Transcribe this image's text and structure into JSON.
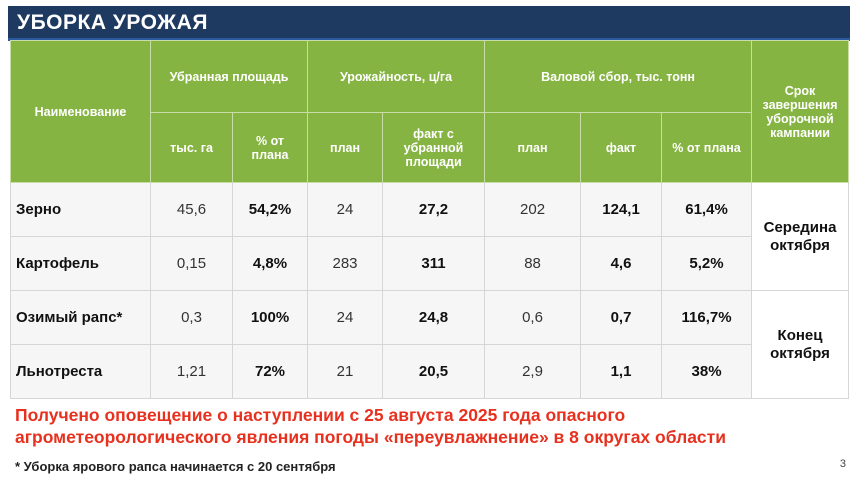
{
  "title": "УБОРКА УРОЖАЯ",
  "header": {
    "name": "Наименование",
    "area_group": "Убранная площадь",
    "yield_group": "Урожайность, ц/га",
    "gross_group": "Валовой сбор, тыс. тонн",
    "term": "Срок завершения уборочной кампании",
    "area_ha": "тыс. га",
    "area_pct": "% от плана",
    "yield_plan": "план",
    "yield_fact": "факт с убранной площади",
    "gross_plan": "план",
    "gross_fact": "факт",
    "gross_pct": "% от плана"
  },
  "rows": [
    {
      "name": "Зерно",
      "area_ha": "45,6",
      "area_pct": "54,2%",
      "yield_plan": "24",
      "yield_fact": "27,2",
      "gross_plan": "202",
      "gross_fact": "124,1",
      "gross_pct": "61,4%"
    },
    {
      "name": "Картофель",
      "area_ha": "0,15",
      "area_pct": "4,8%",
      "yield_plan": "283",
      "yield_fact": "311",
      "gross_plan": "88",
      "gross_fact": "4,6",
      "gross_pct": "5,2%"
    },
    {
      "name": "Озимый рапс*",
      "area_ha": "0,3",
      "area_pct": "100%",
      "yield_plan": "24",
      "yield_fact": "24,8",
      "gross_plan": "0,6",
      "gross_fact": "0,7",
      "gross_pct": "116,7%"
    },
    {
      "name": "Льнотреста",
      "area_ha": "1,21",
      "area_pct": "72%",
      "yield_plan": "21",
      "yield_fact": "20,5",
      "gross_plan": "2,9",
      "gross_fact": "1,1",
      "gross_pct": "38%"
    }
  ],
  "terms": [
    "Середина октября",
    "Конец октября"
  ],
  "alert": "Получено оповещение о наступлении с 25 августа 2025 года опасного агрометеорологического явления погоды «переувлажнение» в 8 округах области",
  "footnote": "* Уборка ярового рапса начинается с 20 сентября",
  "page_number": "3"
}
